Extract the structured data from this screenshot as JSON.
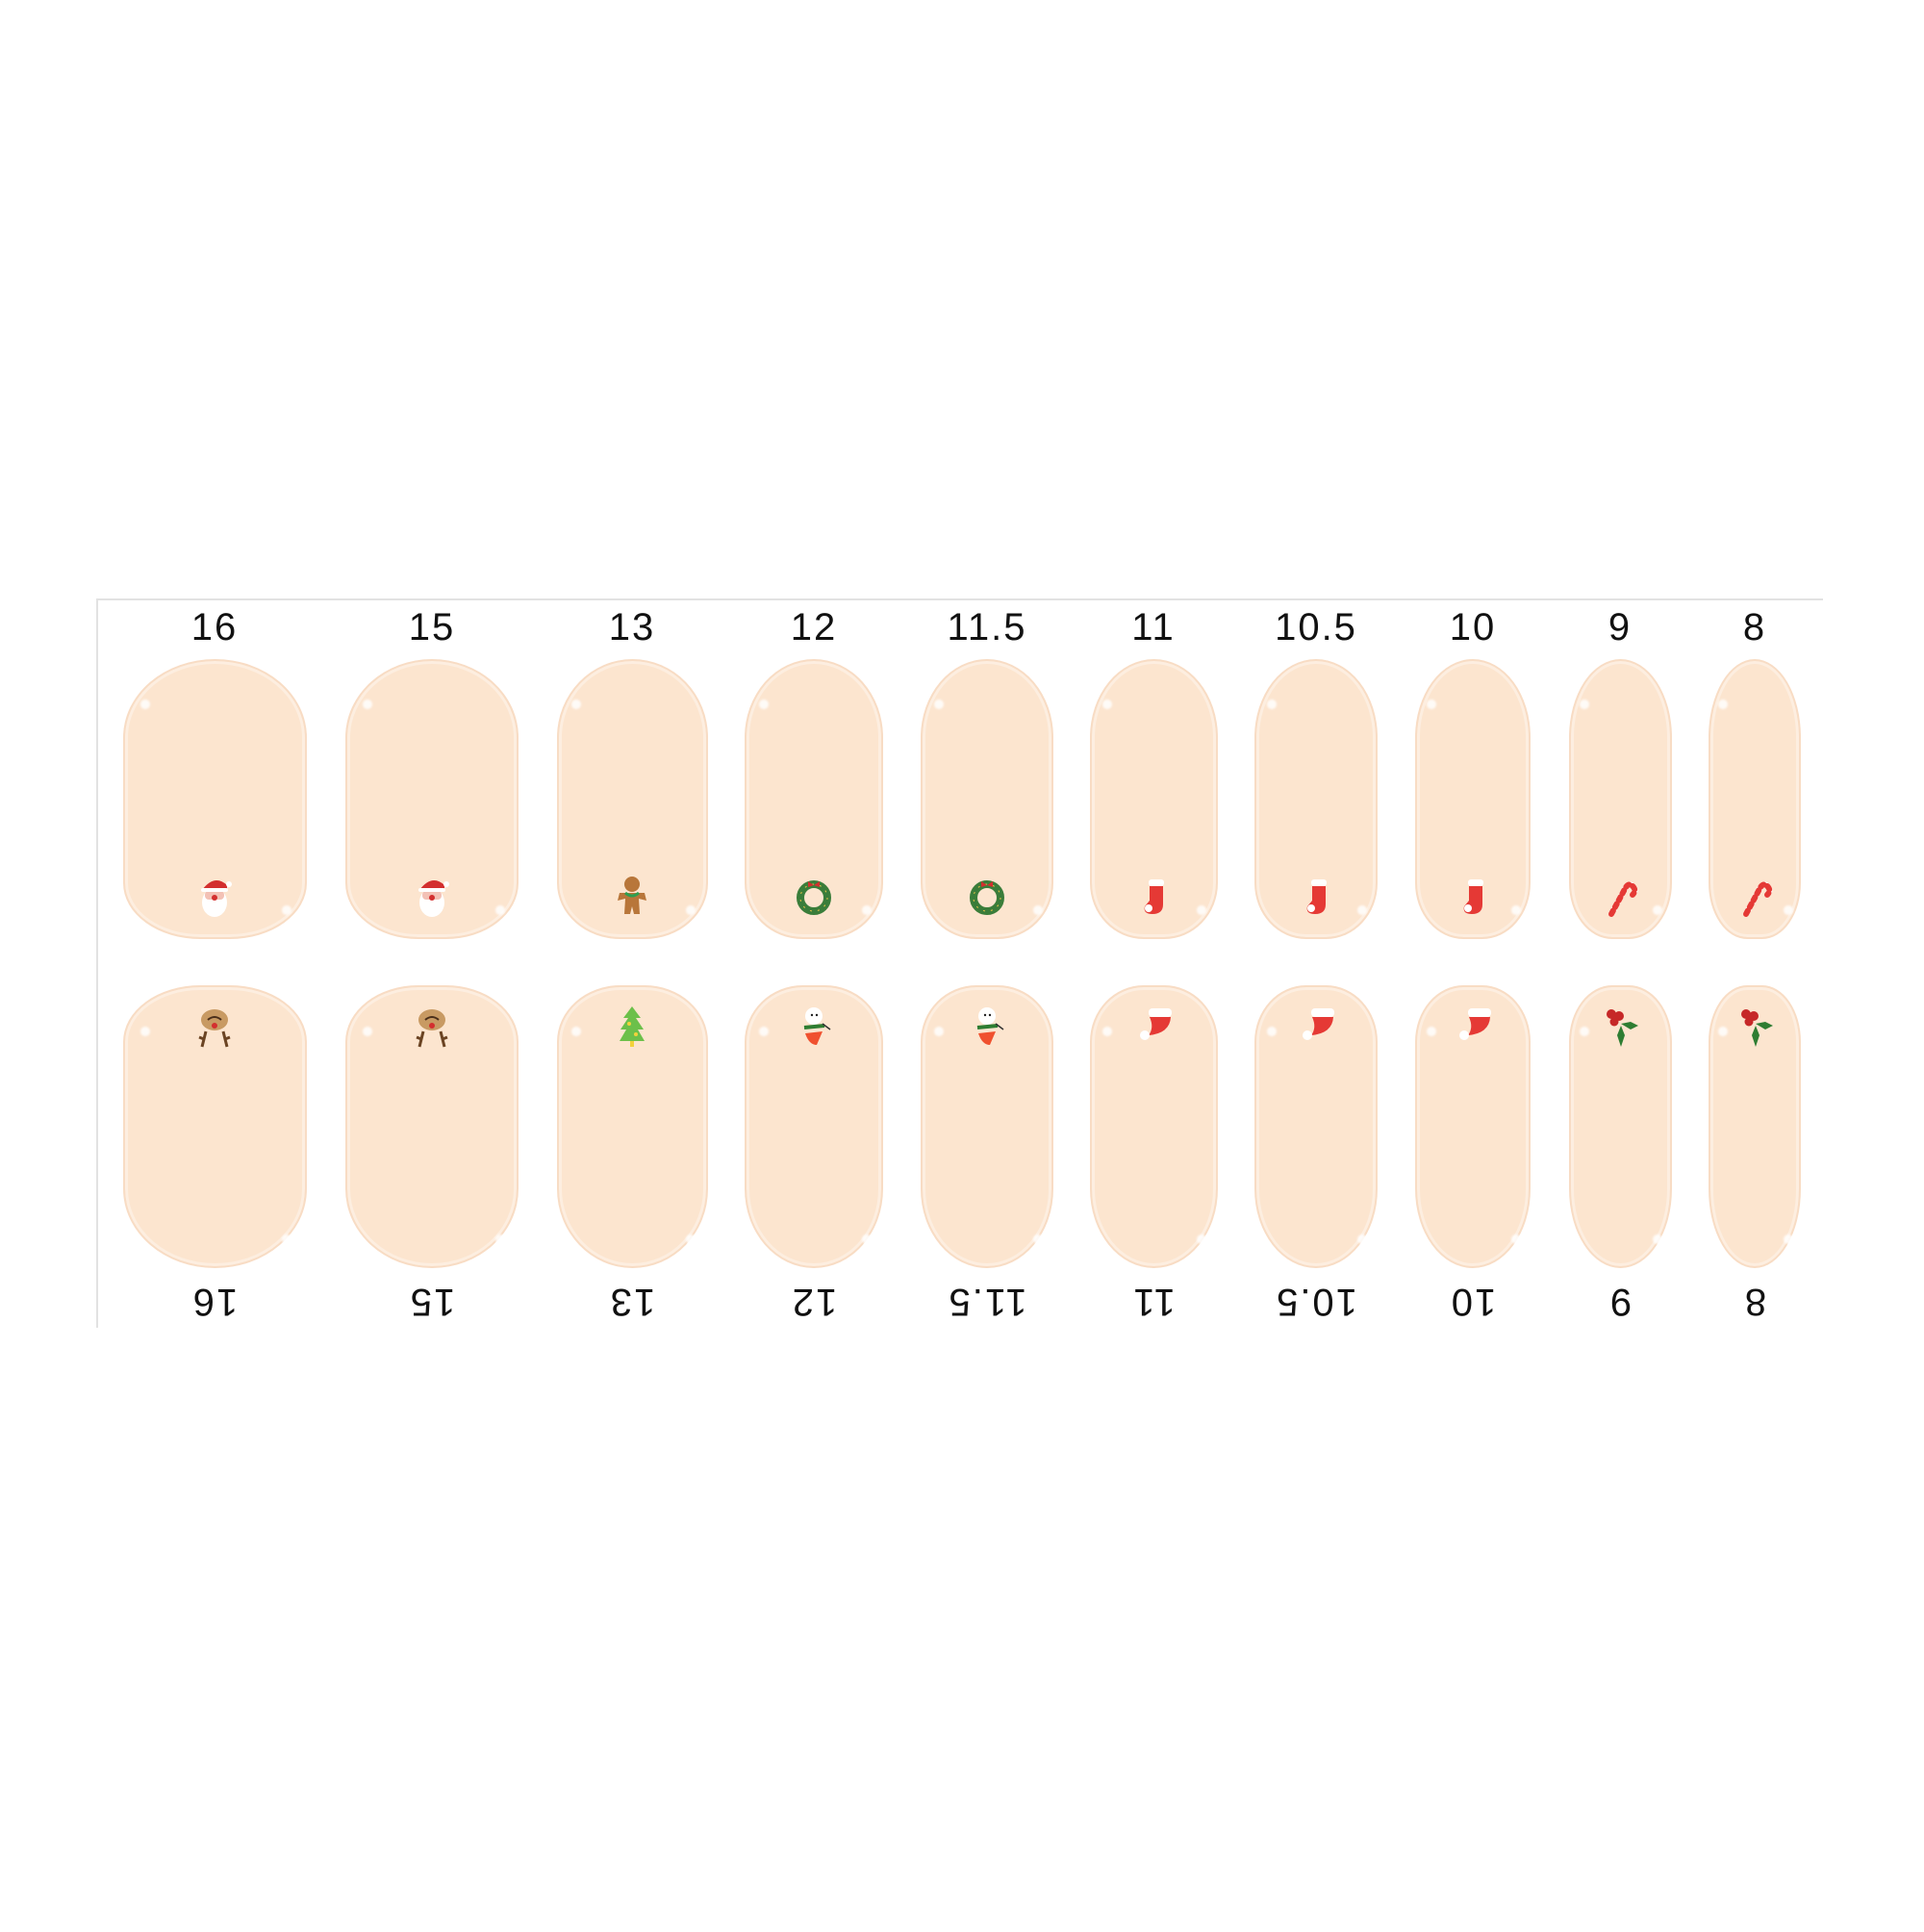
{
  "colors": {
    "nail": "#fce5cf",
    "nail_edge": "#f8dcc4",
    "label": "#111111",
    "red": "#e53935",
    "green": "#2e7d32",
    "brown": "#b8763a"
  },
  "columns": [
    {
      "top_label": "16",
      "bottom_label": "16",
      "top_deco": "santa-icon",
      "bottom_deco": "reindeer-icon"
    },
    {
      "top_label": "15",
      "bottom_label": "15",
      "top_deco": "santa-icon",
      "bottom_deco": "reindeer-icon"
    },
    {
      "top_label": "13",
      "bottom_label": "13",
      "top_deco": "gingerbread-icon",
      "bottom_deco": "christmas-tree-icon"
    },
    {
      "top_label": "12",
      "bottom_label": "12",
      "top_deco": "wreath-icon",
      "bottom_deco": "snowman-icon"
    },
    {
      "top_label": "11.5",
      "bottom_label": "11.5",
      "top_deco": "wreath-icon",
      "bottom_deco": "snowman-icon"
    },
    {
      "top_label": "11",
      "bottom_label": "11",
      "top_deco": "stocking-icon",
      "bottom_deco": "santa-hat-icon"
    },
    {
      "top_label": "10.5",
      "bottom_label": "10.5",
      "top_deco": "stocking-icon",
      "bottom_deco": "santa-hat-icon"
    },
    {
      "top_label": "10",
      "bottom_label": "10",
      "top_deco": "stocking-icon",
      "bottom_deco": "santa-hat-icon"
    },
    {
      "top_label": "9",
      "bottom_label": "9",
      "top_deco": "candy-cane-icon",
      "bottom_deco": "holly-icon"
    },
    {
      "top_label": "8",
      "bottom_label": "8",
      "top_deco": "candy-cane-icon",
      "bottom_deco": "holly-icon"
    }
  ]
}
